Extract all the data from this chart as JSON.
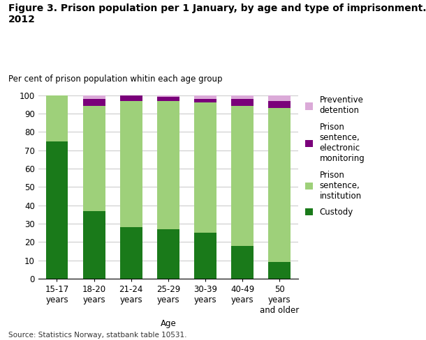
{
  "title": "Figure 3. Prison population per 1 January, by age and type of imprisonment.\n2012",
  "subtitle": "Per cent of prison population whitin each age group",
  "xlabel": "Age",
  "source": "Source: Statistics Norway, statbank table 10531.",
  "categories": [
    "15-17\nyears",
    "18-20\nyears",
    "21-24\nyears",
    "25-29\nyears",
    "30-39\nyears",
    "40-49\nyears",
    "50\nyears\nand older"
  ],
  "custody": [
    75,
    37,
    28,
    27,
    25,
    18,
    9
  ],
  "prison_institution": [
    25,
    57,
    69,
    70,
    71,
    76,
    84
  ],
  "electronic_monitoring": [
    0,
    4,
    3,
    2,
    2,
    4,
    4
  ],
  "preventive_detention": [
    0,
    2,
    0,
    1,
    2,
    2,
    3
  ],
  "color_custody": "#1a7a1a",
  "color_institution": "#9ed07a",
  "color_electronic": "#7a007a",
  "color_preventive": "#dbaad8",
  "ylim": [
    0,
    100
  ],
  "title_fontsize": 10,
  "subtitle_fontsize": 8.5,
  "tick_fontsize": 8.5,
  "legend_fontsize": 8.5,
  "background_color": "#ffffff",
  "grid_color": "#cccccc"
}
